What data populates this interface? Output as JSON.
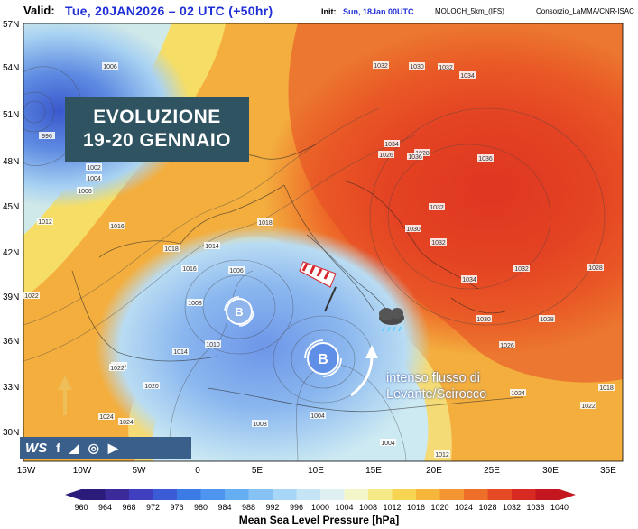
{
  "header": {
    "valid_label": "Valid:",
    "valid_value": "Tue, 20JAN2026 – 02 UTC (+50hr)",
    "init_label": "Init:",
    "init_value": "Sun, 18Jan 00UTC",
    "model_label": "MOLOCH_5km_(IFS)",
    "credit_label": "Consorzio_LaMMA/CNR-ISAC"
  },
  "overlay": {
    "title_line1": "EVOLUZIONE",
    "title_line2": "19-20 GENNAIO",
    "annotation_line1": "intenso flusso di",
    "annotation_line2": "Levante/Scirocco",
    "low1_letter": "B",
    "low2_letter": "B"
  },
  "axes": {
    "lat_labels": [
      "57N",
      "54N",
      "51N",
      "48N",
      "45N",
      "42N",
      "39N",
      "36N",
      "33N",
      "30N"
    ],
    "lon_labels": [
      "15W",
      "10W",
      "5W",
      "0",
      "5E",
      "10E",
      "15E",
      "20E",
      "25E",
      "30E",
      "35E"
    ]
  },
  "isobar_labels": [
    "1006",
    "996",
    "1002",
    "1004",
    "1006",
    "1012",
    "1016",
    "1018",
    "1014",
    "1022",
    "1024",
    "1020",
    "1018",
    "1016",
    "1006",
    "1008",
    "1010",
    "1014",
    "1020",
    "1022",
    "1024",
    "1008",
    "1004",
    "1004",
    "1012",
    "1026",
    "1028",
    "1030",
    "1032",
    "1034",
    "1036",
    "1032",
    "1034",
    "1036",
    "1030",
    "1032",
    "1032",
    "1034",
    "1032",
    "1030",
    "1028",
    "1026",
    "1024",
    "1028",
    "1022",
    "1018"
  ],
  "social": {
    "ws": "WS",
    "f": "f",
    "telegram": "◢",
    "instagram": "◎",
    "youtube": "▶"
  },
  "colorbar": {
    "title": "Mean Sea Level Pressure [hPa]",
    "labels": [
      "960",
      "964",
      "968",
      "972",
      "976",
      "980",
      "984",
      "988",
      "992",
      "996",
      "1000",
      "1004",
      "1008",
      "1012",
      "1016",
      "1020",
      "1024",
      "1028",
      "1032",
      "1036",
      "1040"
    ],
    "colors": [
      "#2b1b7a",
      "#3a2a9a",
      "#3f3fbf",
      "#3c5bd6",
      "#3c7ae6",
      "#4d95ee",
      "#66aef2",
      "#86c2f4",
      "#a8d6f6",
      "#c5e5f6",
      "#dff0f2",
      "#f3f6c8",
      "#f6ea86",
      "#f7d451",
      "#f6b63a",
      "#f39530",
      "#ee6f2a",
      "#e64a25",
      "#d82a22",
      "#c3161f"
    ]
  }
}
